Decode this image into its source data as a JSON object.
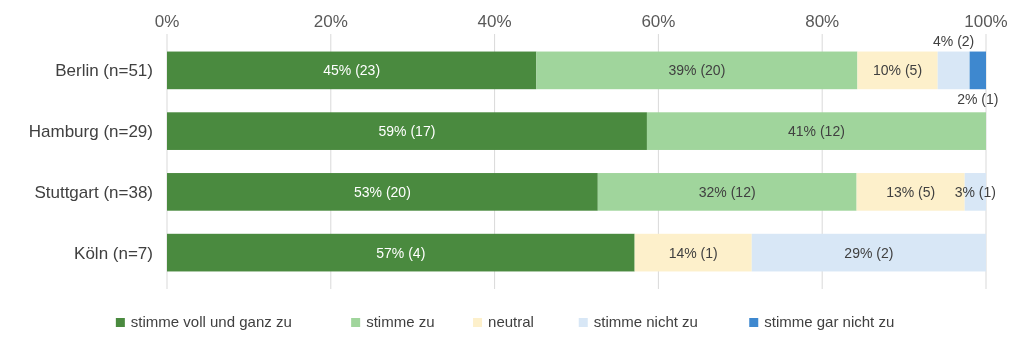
{
  "chart_data": {
    "type": "bar",
    "orientation": "horizontal",
    "stacked": true,
    "categories": [
      "Berlin (n=51)",
      "Hamburg (n=29)",
      "Stuttgart (n=38)",
      "Köln (n=7)"
    ],
    "series": [
      {
        "name": "stimme voll und ganz zu",
        "color": "#4a8a3f",
        "values": [
          45.1,
          58.6,
          52.6,
          57.1
        ],
        "value_labels": [
          "45% (23)",
          "59% (17)",
          "53% (20)",
          "57% (4)"
        ]
      },
      {
        "name": "stimme zu",
        "color": "#a0d59c",
        "values": [
          39.2,
          41.4,
          31.6,
          null
        ],
        "value_labels": [
          "39% (20)",
          "41% (12)",
          "32% (12)",
          null
        ]
      },
      {
        "name": "neutral",
        "color": "#fdf0cb",
        "values": [
          9.8,
          null,
          13.2,
          14.3
        ],
        "value_labels": [
          "10% (5)",
          null,
          "13% (5)",
          "14% (1)"
        ]
      },
      {
        "name": "stimme nicht zu",
        "color": "#d8e7f6",
        "values": [
          3.9,
          null,
          2.6,
          28.6
        ],
        "value_labels": [
          "4% (2)",
          null,
          "3% (1)",
          "29% (2)"
        ]
      },
      {
        "name": "stimme gar nicht zu",
        "color": "#3e88cf",
        "values": [
          2.0,
          null,
          null,
          null
        ],
        "value_labels": [
          "2% (1)",
          null,
          null,
          null
        ]
      }
    ],
    "xlim": [
      0,
      100
    ],
    "xticks": [
      {
        "value": 0,
        "label": "0%"
      },
      {
        "value": 20,
        "label": "20%"
      },
      {
        "value": 40,
        "label": "40%"
      },
      {
        "value": 60,
        "label": "60%"
      },
      {
        "value": 80,
        "label": "80%"
      },
      {
        "value": 100,
        "label": "100%"
      }
    ],
    "grid": "x",
    "legend": "bottom"
  }
}
